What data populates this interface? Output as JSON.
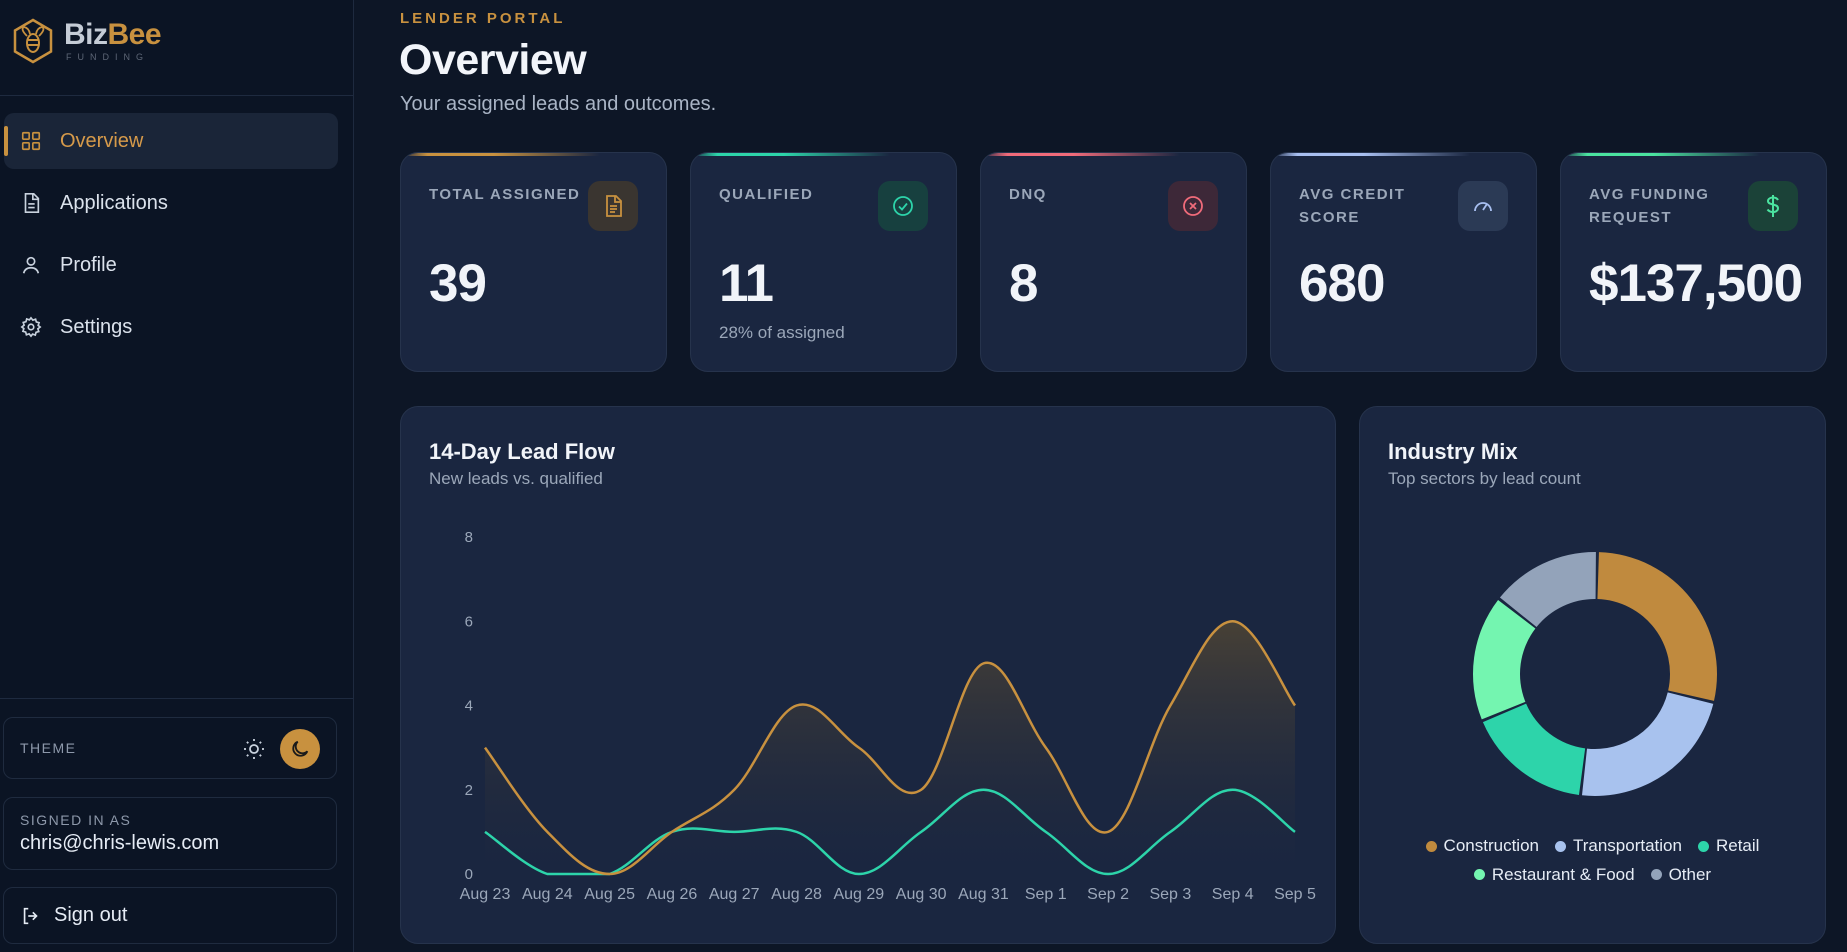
{
  "brand": {
    "name_part1": "Biz",
    "name_part2": "Bee",
    "tagline": "FUNDING"
  },
  "nav": [
    {
      "id": "overview",
      "label": "Overview",
      "icon": "grid-icon",
      "active": true
    },
    {
      "id": "applications",
      "label": "Applications",
      "icon": "document-icon",
      "active": false
    },
    {
      "id": "profile",
      "label": "Profile",
      "icon": "user-icon",
      "active": false
    },
    {
      "id": "settings",
      "label": "Settings",
      "icon": "gear-icon",
      "active": false
    }
  ],
  "theme": {
    "label": "THEME",
    "active": "dark"
  },
  "account": {
    "label": "SIGNED IN AS",
    "email": "chris@chris-lewis.com",
    "signout_label": "Sign out"
  },
  "header": {
    "eyebrow": "LENDER PORTAL",
    "title": "Overview",
    "subtitle": "Your assigned leads and outcomes."
  },
  "stats": [
    {
      "label": "TOTAL ASSIGNED",
      "value": "39",
      "note": "",
      "icon": "document-icon",
      "accent": "#c8913f"
    },
    {
      "label": "QUALIFIED",
      "value": "11",
      "note": "28% of assigned",
      "icon": "check-circle-icon",
      "accent": "#2dd4aa"
    },
    {
      "label": "DNQ",
      "value": "8",
      "note": "",
      "icon": "x-circle-icon",
      "accent": "#f06b7a"
    },
    {
      "label": "AVG CREDIT SCORE",
      "value": "680",
      "note": "",
      "icon": "gauge-icon",
      "accent": "#a8bff0"
    },
    {
      "label": "AVG FUNDING REQUEST",
      "value": "$137,500",
      "note": "",
      "icon": "dollar-icon",
      "accent": "#4be3a0"
    }
  ],
  "lead_flow": {
    "title": "14-Day Lead Flow",
    "subtitle": "New leads vs. qualified"
  },
  "industry": {
    "title": "Industry Mix",
    "subtitle": "Top sectors by lead count"
  },
  "chart_data": [
    {
      "type": "area",
      "title": "14-Day Lead Flow",
      "categories": [
        "Aug 23",
        "Aug 24",
        "Aug 25",
        "Aug 26",
        "Aug 27",
        "Aug 28",
        "Aug 29",
        "Aug 30",
        "Aug 31",
        "Sep 1",
        "Sep 2",
        "Sep 3",
        "Sep 4",
        "Sep 5"
      ],
      "series": [
        {
          "values": [
            3,
            1,
            0,
            1,
            2,
            4,
            3,
            2,
            5,
            3,
            1,
            4,
            6,
            4
          ],
          "color": "#c8913f"
        },
        {
          "values": [
            1,
            0,
            0,
            1,
            1,
            1,
            0,
            1,
            2,
            1,
            0,
            1,
            2,
            1
          ],
          "color": "#2dd4aa"
        }
      ],
      "ylim": [
        0,
        8
      ],
      "yticks": [
        0,
        2,
        4,
        6,
        8
      ],
      "grid": false
    },
    {
      "type": "pie",
      "title": "Industry Mix",
      "donut": true,
      "categories": [
        "Construction",
        "Transportation",
        "Retail",
        "Restaurant & Food",
        "Other"
      ],
      "values": [
        27,
        22,
        16,
        16,
        14
      ],
      "colors": [
        "#c08a3e",
        "#a8c2ee",
        "#2dd4aa",
        "#74f5b0",
        "#93a3ba"
      ],
      "legend": "bottom"
    }
  ]
}
